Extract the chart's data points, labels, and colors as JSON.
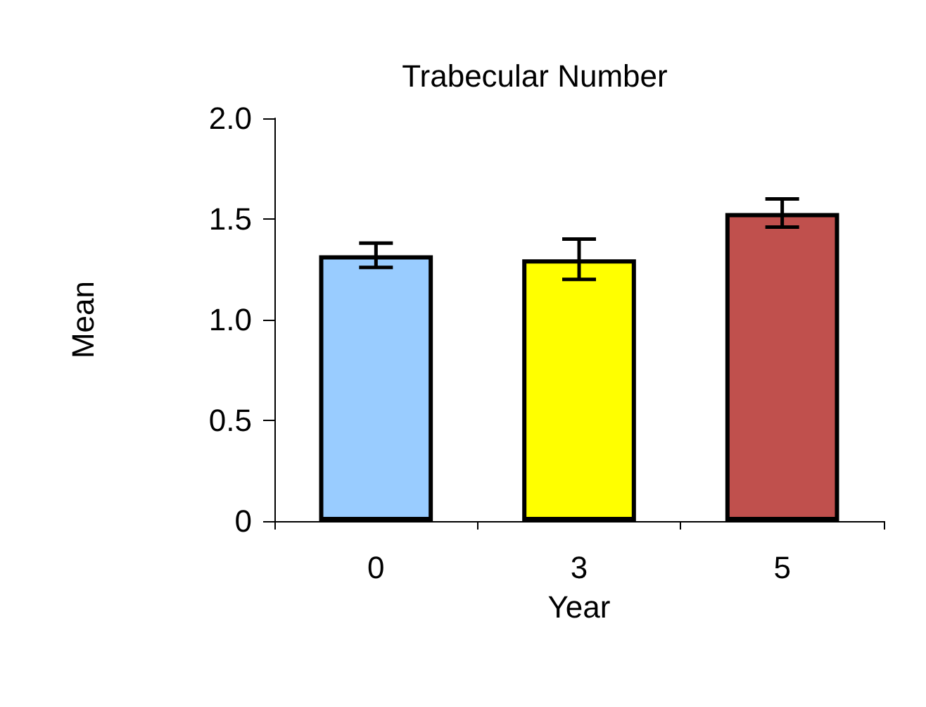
{
  "chart_data": {
    "type": "bar",
    "title": "Trabecular Number",
    "xlabel": "Year",
    "ylabel": "Mean",
    "categories": [
      "0",
      "3",
      "5"
    ],
    "values": [
      1.32,
      1.3,
      1.53
    ],
    "colors": [
      "#99ccff",
      "#ffff00",
      "#c0504d"
    ],
    "errors": [
      0.06,
      0.1,
      0.07
    ],
    "ylim": [
      0,
      2
    ],
    "yticks": [
      {
        "value": 0,
        "label": "0"
      },
      0.5,
      {
        "value": 1,
        "label": "1.0"
      },
      1.5,
      {
        "value": 2,
        "label": "2.0"
      }
    ],
    "grid": false
  }
}
